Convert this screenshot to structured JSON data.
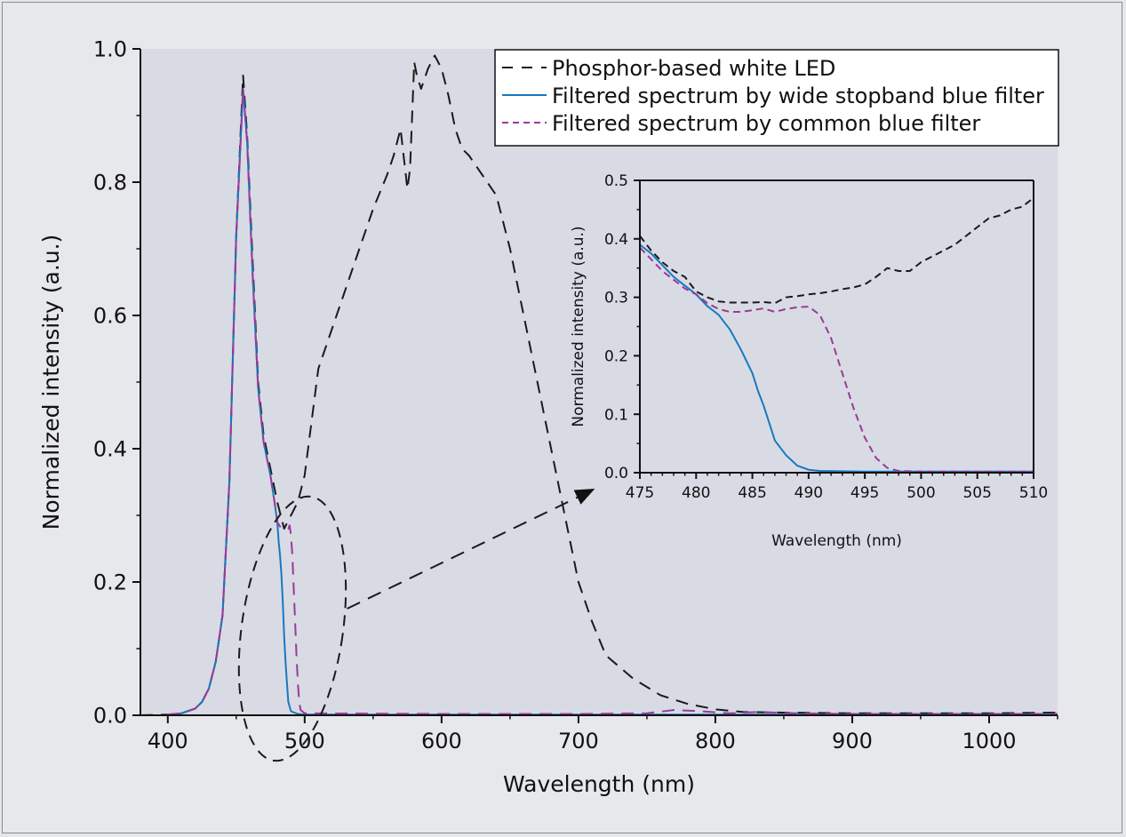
{
  "chart_data": [
    {
      "type": "line",
      "xlabel": "Wavelength (nm)",
      "ylabel": "Normalized intensity (a.u.)",
      "xlim": [
        380,
        1050
      ],
      "ylim": [
        0,
        1.0
      ],
      "xticks": [
        400,
        500,
        600,
        700,
        800,
        900,
        1000
      ],
      "xtick_labels": [
        "400",
        "500",
        "600",
        "700",
        "800",
        "900",
        "1000"
      ],
      "yticks": [
        0,
        0.2,
        0.4,
        0.6,
        0.8,
        1.0
      ],
      "ytick_labels": [
        "0.0",
        "0.2",
        "0.4",
        "0.6",
        "0.8",
        "1.0"
      ],
      "grid": false,
      "legend_position": "top-right",
      "legend": [
        "Phosphor-based white LED",
        "Filtered spectrum by wide stopband blue filter",
        "Filtered spectrum by common blue filter"
      ],
      "series": [
        {
          "name": "Phosphor-based white LED",
          "color": "#1a1a1a",
          "style": "dashed",
          "x": [
            380,
            400,
            410,
            420,
            425,
            430,
            435,
            440,
            445,
            450,
            455,
            458,
            462,
            466,
            470,
            475,
            480,
            485,
            490,
            495,
            500,
            505,
            510,
            520,
            530,
            540,
            550,
            560,
            565,
            570,
            575,
            577,
            580,
            582,
            585,
            590,
            595,
            600,
            605,
            610,
            615,
            620,
            630,
            640,
            650,
            660,
            670,
            680,
            690,
            700,
            710,
            720,
            740,
            760,
            780,
            800,
            820,
            850,
            900,
            950,
            1000,
            1050
          ],
          "y": [
            0,
            0.001,
            0.003,
            0.01,
            0.02,
            0.04,
            0.08,
            0.15,
            0.35,
            0.72,
            0.96,
            0.87,
            0.68,
            0.5,
            0.42,
            0.37,
            0.32,
            0.28,
            0.3,
            0.32,
            0.36,
            0.44,
            0.52,
            0.58,
            0.64,
            0.7,
            0.76,
            0.81,
            0.84,
            0.88,
            0.79,
            0.82,
            0.98,
            0.96,
            0.94,
            0.97,
            0.99,
            0.97,
            0.93,
            0.88,
            0.85,
            0.84,
            0.81,
            0.78,
            0.7,
            0.6,
            0.5,
            0.4,
            0.3,
            0.2,
            0.14,
            0.09,
            0.055,
            0.03,
            0.017,
            0.009,
            0.005,
            0.004,
            0.003,
            0.003,
            0.003,
            0.004
          ]
        },
        {
          "name": "Filtered spectrum by wide stopband blue filter",
          "color": "#1878c0",
          "style": "solid",
          "x": [
            400,
            410,
            420,
            425,
            430,
            435,
            440,
            445,
            450,
            455,
            458,
            462,
            466,
            470,
            475,
            478,
            480,
            481,
            482,
            483,
            484,
            485,
            486,
            487,
            488,
            490,
            495,
            500,
            600,
            700,
            800,
            900,
            1050
          ],
          "y": [
            0.001,
            0.003,
            0.01,
            0.02,
            0.04,
            0.08,
            0.15,
            0.35,
            0.72,
            0.94,
            0.86,
            0.66,
            0.49,
            0.41,
            0.36,
            0.32,
            0.29,
            0.26,
            0.24,
            0.21,
            0.17,
            0.12,
            0.08,
            0.05,
            0.02,
            0.006,
            0.002,
            0.001,
            0.001,
            0.001,
            0.001,
            0.001,
            0.001
          ]
        },
        {
          "name": "Filtered spectrum by common blue filter",
          "color": "#9a3a96",
          "style": "dashed",
          "x": [
            400,
            410,
            420,
            425,
            430,
            435,
            440,
            445,
            450,
            455,
            458,
            462,
            466,
            470,
            475,
            478,
            480,
            483,
            486,
            488,
            489,
            490,
            491,
            492,
            493,
            494,
            495,
            496,
            497,
            500,
            600,
            700,
            750,
            770,
            790,
            810,
            830,
            860,
            900,
            1050
          ],
          "y": [
            0.001,
            0.003,
            0.01,
            0.02,
            0.04,
            0.08,
            0.15,
            0.35,
            0.72,
            0.94,
            0.86,
            0.66,
            0.49,
            0.41,
            0.36,
            0.32,
            0.29,
            0.28,
            0.28,
            0.28,
            0.285,
            0.27,
            0.24,
            0.19,
            0.14,
            0.09,
            0.05,
            0.02,
            0.008,
            0.003,
            0.002,
            0.002,
            0.003,
            0.008,
            0.006,
            0.003,
            0.005,
            0.003,
            0.002,
            0.002
          ]
        }
      ],
      "annotations": [
        {
          "type": "ellipse",
          "center": [
            491,
            0.13
          ],
          "radius": [
            37,
            0.2
          ],
          "style": "dashed",
          "meaning": "zoom region"
        },
        {
          "type": "arrow",
          "from": [
            531,
            0.16
          ],
          "to": [
            712,
            0.34
          ],
          "style": "dashed"
        }
      ]
    },
    {
      "type": "line",
      "inset": true,
      "xlabel": "Wavelength (nm)",
      "ylabel": "Normalized intensity (a.u.)",
      "xlim": [
        475,
        510
      ],
      "ylim": [
        0,
        0.5
      ],
      "xticks": [
        475,
        480,
        485,
        490,
        495,
        500,
        505,
        510
      ],
      "xtick_labels": [
        "475",
        "480",
        "485",
        "490",
        "495",
        "500",
        "505",
        "510"
      ],
      "yticks": [
        0,
        0.1,
        0.2,
        0.3,
        0.4,
        0.5
      ],
      "ytick_labels": [
        "0.0",
        "0.1",
        "0.2",
        "0.3",
        "0.4",
        "0.5"
      ],
      "series": [
        {
          "name": "Phosphor-based white LED",
          "color": "#1a1a1a",
          "style": "dashed",
          "x": [
            475,
            476,
            477,
            478,
            479,
            480,
            481,
            482,
            483,
            484,
            485,
            486,
            487,
            488,
            489,
            490,
            491,
            492,
            493,
            494,
            495,
            496,
            497,
            498,
            499,
            500,
            501,
            502,
            503,
            504,
            505,
            506,
            507,
            508,
            509,
            510
          ],
          "y": [
            0.405,
            0.38,
            0.36,
            0.345,
            0.335,
            0.31,
            0.3,
            0.293,
            0.291,
            0.291,
            0.291,
            0.292,
            0.29,
            0.3,
            0.302,
            0.305,
            0.307,
            0.31,
            0.314,
            0.317,
            0.322,
            0.335,
            0.35,
            0.345,
            0.345,
            0.36,
            0.37,
            0.38,
            0.39,
            0.405,
            0.42,
            0.435,
            0.44,
            0.45,
            0.455,
            0.47
          ]
        },
        {
          "name": "Filtered spectrum by wide stopband blue filter",
          "color": "#1878c0",
          "style": "solid",
          "x": [
            475,
            476,
            477,
            478,
            479,
            480,
            481,
            482,
            483,
            484,
            485,
            485.5,
            486,
            486.5,
            487,
            488,
            489,
            490,
            491,
            495,
            500,
            510
          ],
          "y": [
            0.39,
            0.375,
            0.355,
            0.335,
            0.32,
            0.305,
            0.285,
            0.27,
            0.245,
            0.21,
            0.17,
            0.14,
            0.115,
            0.085,
            0.055,
            0.03,
            0.012,
            0.005,
            0.003,
            0.002,
            0.002,
            0.002
          ]
        },
        {
          "name": "Filtered spectrum by common blue filter",
          "color": "#9a3a96",
          "style": "dashed",
          "x": [
            475,
            476,
            477,
            478,
            479,
            480,
            481,
            482,
            483,
            484,
            485,
            486,
            487,
            488,
            489,
            490,
            491,
            492,
            493,
            494,
            495,
            496,
            497,
            498,
            500,
            505,
            510
          ],
          "y": [
            0.385,
            0.365,
            0.345,
            0.33,
            0.315,
            0.305,
            0.29,
            0.28,
            0.275,
            0.275,
            0.278,
            0.281,
            0.275,
            0.28,
            0.283,
            0.284,
            0.27,
            0.23,
            0.17,
            0.11,
            0.06,
            0.025,
            0.008,
            0.003,
            0.002,
            0.002,
            0.002
          ]
        }
      ]
    }
  ]
}
